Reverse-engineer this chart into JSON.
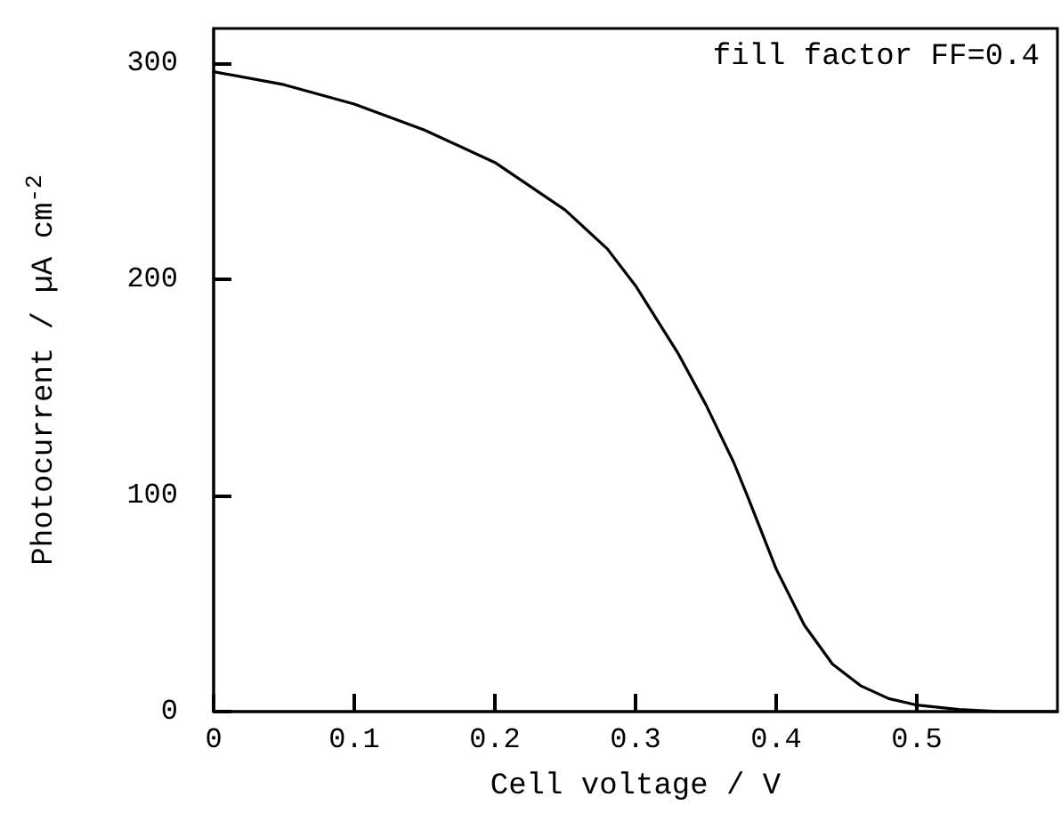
{
  "chart_data": {
    "type": "line",
    "xlabel": "Cell voltage / V",
    "ylabel": "Photocurrent / µA cm$^{-2}$",
    "annotations": [
      "fill factor FF=0.4"
    ],
    "x": [
      0,
      0.05,
      0.1,
      0.15,
      0.2,
      0.25,
      0.28,
      0.3,
      0.33,
      0.35,
      0.37,
      0.38,
      0.4,
      0.42,
      0.44,
      0.46,
      0.48,
      0.5,
      0.53,
      0.56,
      0.6
    ],
    "series": [
      {
        "color": "#000000",
        "values": [
          296,
          290,
          281,
          269,
          254,
          232,
          214,
          197,
          166,
          142,
          115,
          99,
          66,
          40,
          22,
          12,
          6,
          3,
          1,
          0,
          0
        ]
      }
    ],
    "xlim": [
      0,
      0.6
    ],
    "ylim": [
      0,
      316
    ],
    "xticks": [
      0,
      0.1,
      0.2,
      0.3,
      0.4,
      0.5
    ],
    "yticks": [
      0,
      100,
      200,
      300
    ],
    "grid": false,
    "marker": "none",
    "line_style": "solid"
  }
}
